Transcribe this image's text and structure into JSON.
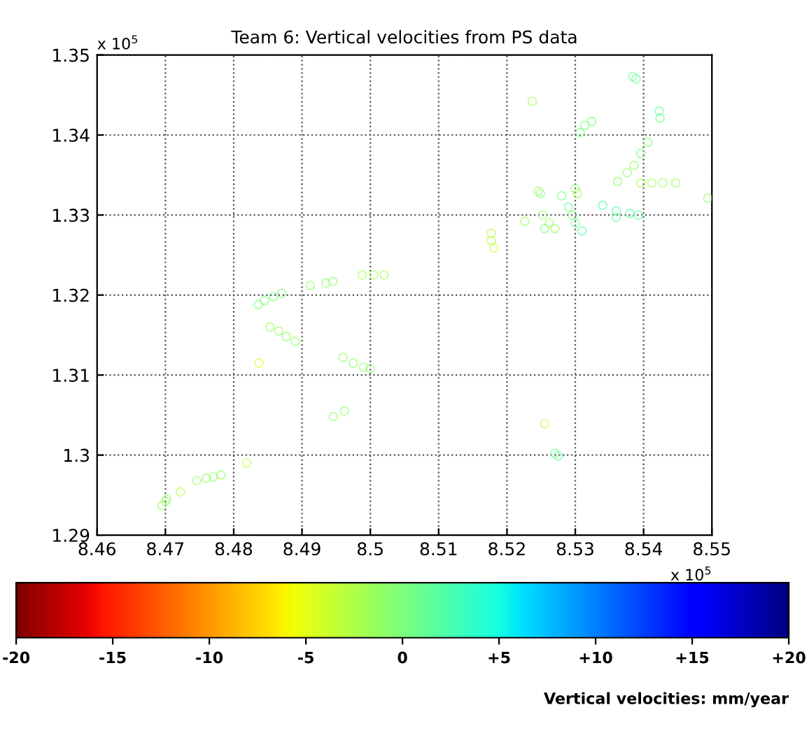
{
  "chart_data": {
    "type": "scatter",
    "title": "Team 6: Vertical velocities from PS data",
    "annotations": [
      "x 10$^{5}$",
      "x 10$^{5}$"
    ],
    "marker": "circle",
    "grid": true,
    "clabel": "Vertical velocities: mm/year",
    "clim": [
      -20,
      20
    ],
    "cticks": [
      -20,
      -15,
      -10,
      -5,
      0,
      {
        "value": 5,
        "label": "+5"
      },
      {
        "value": 10,
        "label": "+10"
      },
      {
        "value": 15,
        "label": "+15"
      },
      {
        "value": 20,
        "label": "+20"
      }
    ],
    "xlim": [
      8.46,
      8.55
    ],
    "ylim": [
      1.29,
      1.35
    ],
    "xticks": [
      8.46,
      8.47,
      8.48,
      8.49,
      {
        "value": 8.5,
        "label": "8.5"
      },
      8.51,
      8.52,
      8.53,
      8.54,
      8.55
    ],
    "yticks": [
      1.29,
      {
        "value": 1.3,
        "label": "1.3"
      },
      1.31,
      1.32,
      1.33,
      1.34,
      1.35
    ],
    "x": [
      8.4695,
      8.47,
      8.4702,
      8.4722,
      8.4746,
      8.476,
      8.477,
      8.4781,
      8.4819,
      8.4837,
      8.4836,
      8.4845,
      8.4858,
      8.487,
      8.4853,
      8.4866,
      8.4877,
      8.489,
      8.4912,
      8.4935,
      8.4945,
      8.4988,
      8.5005,
      8.502,
      8.496,
      8.4975,
      8.499,
      8.5,
      8.4946,
      8.4962,
      8.5275,
      8.527,
      8.5255,
      8.5384,
      8.5389,
      8.5237,
      8.5423,
      8.5424,
      8.5314,
      8.5324,
      8.5307,
      8.5406,
      8.5396,
      8.5386,
      8.5376,
      8.5362,
      8.5396,
      8.5412,
      8.5428,
      8.5447,
      8.5494,
      8.5246,
      8.5249,
      8.53,
      8.5303,
      8.528,
      8.529,
      8.53,
      8.531,
      8.5296,
      8.5252,
      8.5262,
      8.527,
      8.5226,
      8.534,
      8.536,
      8.538,
      8.5392,
      8.536,
      8.5177,
      8.5181,
      8.5177,
      8.5255
    ],
    "values": [
      1.2937,
      1.2942,
      1.2945,
      1.2954,
      1.2968,
      1.2971,
      1.2973,
      1.2975,
      1.299,
      1.3115,
      1.3188,
      1.3193,
      1.3198,
      1.3202,
      1.316,
      1.3155,
      1.3148,
      1.3142,
      1.3212,
      1.3215,
      1.3217,
      1.3225,
      1.3225,
      1.3225,
      1.3122,
      1.3115,
      1.311,
      1.3108,
      1.3048,
      1.3055,
      1.2999,
      1.3002,
      1.3039,
      1.3473,
      1.347,
      1.3442,
      1.343,
      1.3421,
      1.3412,
      1.3417,
      1.3403,
      1.3391,
      1.3377,
      1.3362,
      1.3353,
      1.3342,
      1.334,
      1.334,
      1.334,
      1.334,
      1.3321,
      1.333,
      1.3327,
      1.3333,
      1.3327,
      1.3324,
      1.331,
      1.329,
      1.328,
      1.33,
      1.33,
      1.329,
      1.3283,
      1.3292,
      1.3312,
      1.3305,
      1.3302,
      1.33,
      1.3297,
      1.3268,
      1.3259,
      1.3277,
      1.3283
    ],
    "cvalues": [
      -1,
      -1,
      -1,
      -3,
      -1,
      -1,
      -1,
      -1,
      -3,
      -4,
      0,
      0,
      0,
      0,
      -2,
      -1,
      -1,
      -1,
      -1,
      -1,
      -1,
      -2,
      -2,
      -2,
      -1,
      -1,
      -1,
      -1,
      -1,
      -1,
      1,
      1,
      -3,
      1,
      1,
      -2,
      1,
      1,
      0,
      0,
      0,
      0,
      0,
      -1,
      -1,
      -1,
      -2,
      -2,
      -2,
      -2,
      -1,
      -1,
      -1,
      -1,
      -2,
      0,
      1,
      1,
      2,
      0,
      -1,
      -2,
      -1,
      -2,
      2,
      2,
      2,
      1,
      1,
      -3,
      -3,
      -3,
      0
    ]
  }
}
